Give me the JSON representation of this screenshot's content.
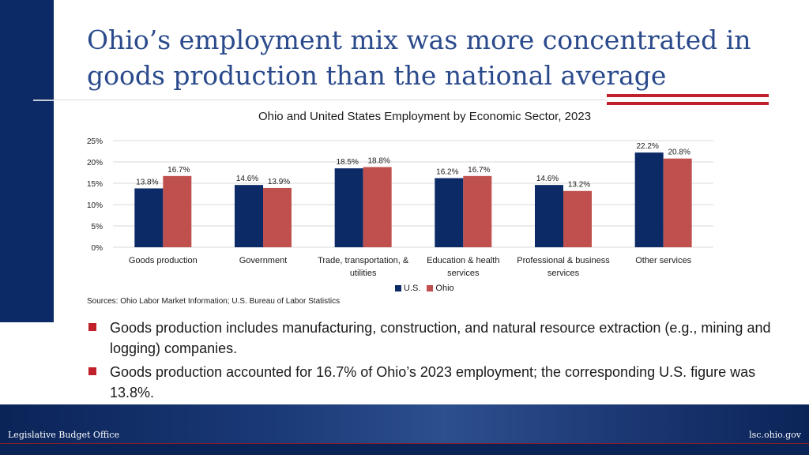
{
  "slide": {
    "title": "Ohio’s employment mix was more concentrated in goods production than the national average",
    "source": "Sources: Ohio Labor Market Information; U.S. Bureau of Labor Statistics",
    "bullets": [
      "Goods production includes manufacturing, construction, and natural resource extraction (e.g., mining and logging) companies.",
      "Goods production accounted for 16.7% of Ohio’s 2023 employment; the corresponding U.S. figure was 13.8%."
    ],
    "footer_left": "Legislative Budget Office",
    "footer_right": "lsc.ohio.gov"
  },
  "colors": {
    "us": "#0b2a66",
    "ohio": "#c0504d",
    "accent": "#c0202a"
  },
  "chart_data": {
    "type": "bar",
    "title": "Ohio and United States Employment by Economic Sector, 2023",
    "categories": [
      [
        "Goods production"
      ],
      [
        "Government"
      ],
      [
        "Trade, transportation, &",
        "utilities"
      ],
      [
        "Education & health",
        "services"
      ],
      [
        "Professional & business",
        "services"
      ],
      [
        "Other services"
      ]
    ],
    "series": [
      {
        "name": "U.S.",
        "values": [
          13.8,
          14.6,
          18.5,
          16.2,
          14.6,
          22.2
        ],
        "labels": [
          "13.8%",
          "14.6%",
          "18.5%",
          "16.2%",
          "14.6%",
          "22.2%"
        ]
      },
      {
        "name": "Ohio",
        "values": [
          16.7,
          13.9,
          18.8,
          16.7,
          13.2,
          20.8
        ],
        "labels": [
          "16.7%",
          "13.9%",
          "18.8%",
          "16.7%",
          "13.2%",
          "20.8%"
        ]
      }
    ],
    "yticks": [
      "0%",
      "5%",
      "10%",
      "15%",
      "20%",
      "25%"
    ],
    "ylim": [
      0,
      25
    ],
    "grid": true,
    "legend_position": "bottom"
  }
}
